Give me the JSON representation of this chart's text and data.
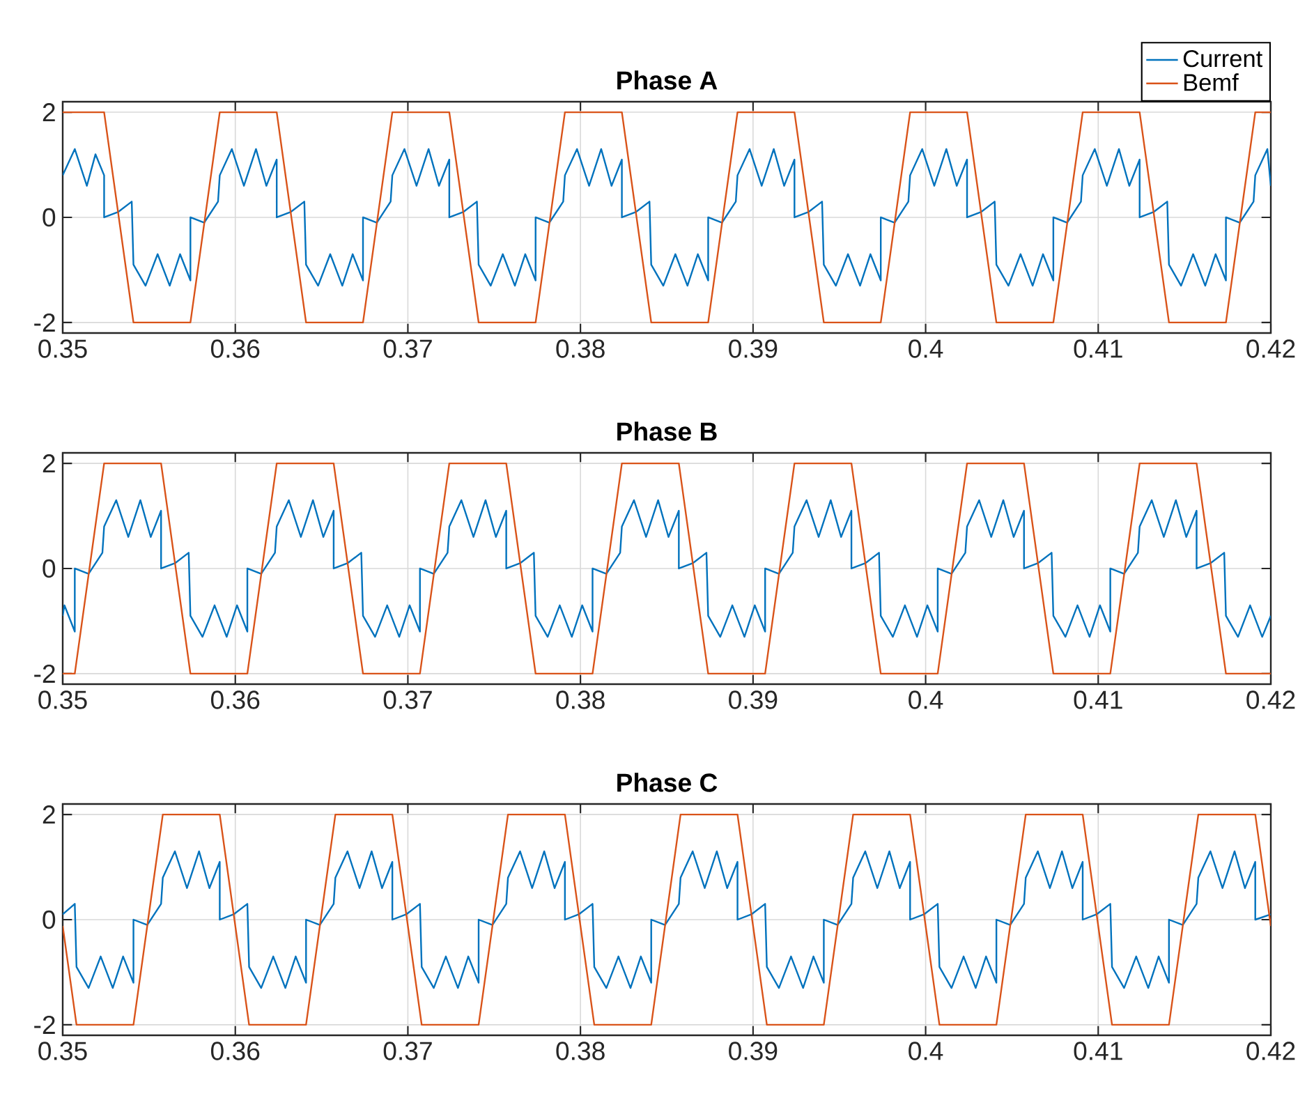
{
  "chart_data": [
    {
      "type": "line",
      "title": "Phase A",
      "xlim": [
        0.35,
        0.42
      ],
      "ylim": [
        -2.2,
        2.2
      ],
      "xticks": [
        0.35,
        0.36,
        0.37,
        0.38,
        0.39,
        0.4,
        0.41,
        0.42
      ],
      "yticks": [
        -2,
        0,
        2
      ],
      "grid": true,
      "legend": "top right",
      "series": [
        {
          "name": "Current",
          "color": "#0072bd",
          "x": [
            0.35,
            0.3507,
            0.3514,
            0.3519,
            0.3524,
            0.3524,
            0.3532,
            0.354,
            0.3541,
            0.3548,
            0.3555,
            0.3562,
            0.3568,
            0.3574,
            0.3574,
            0.3582,
            0.359,
            0.3591,
            0.3598,
            0.3605,
            0.3612,
            0.3618,
            0.3624,
            0.3624,
            0.3632,
            0.364,
            0.3641,
            0.3648,
            0.3655,
            0.3662,
            0.3668,
            0.3674,
            0.3674,
            0.3682,
            0.369,
            0.3691,
            0.3698,
            0.3705,
            0.3712,
            0.3718,
            0.3724,
            0.3724,
            0.3732,
            0.374,
            0.3741,
            0.3748,
            0.3755,
            0.3762,
            0.3768,
            0.3774,
            0.3774,
            0.3782,
            0.379,
            0.3791,
            0.3798,
            0.3805,
            0.3812,
            0.3818,
            0.3824,
            0.3824,
            0.3832,
            0.384,
            0.3841,
            0.3848,
            0.3855,
            0.3862,
            0.3868,
            0.3874,
            0.3874,
            0.3882,
            0.389,
            0.3891,
            0.3898,
            0.3905,
            0.3912,
            0.3918,
            0.3924,
            0.3924,
            0.3932,
            0.394,
            0.3941,
            0.3948,
            0.3955,
            0.3962,
            0.3968,
            0.3974,
            0.3974,
            0.3982,
            0.399,
            0.3991,
            0.3998,
            0.4005,
            0.4012,
            0.4018,
            0.4024,
            0.4024,
            0.4032,
            0.404,
            0.4041,
            0.4048,
            0.4055,
            0.4062,
            0.4068,
            0.4074,
            0.4074,
            0.4082,
            0.409,
            0.4091,
            0.4098,
            0.4105,
            0.4112,
            0.4118,
            0.4124,
            0.4124,
            0.4132,
            0.414,
            0.4141,
            0.4148,
            0.4155,
            0.4162,
            0.4168,
            0.4174,
            0.4174,
            0.4182,
            0.419,
            0.4191,
            0.4198,
            0.42
          ],
          "values": [
            0.8,
            1.3,
            0.6,
            1.2,
            0.8,
            0.0,
            0.1,
            0.3,
            -0.9,
            -1.3,
            -0.7,
            -1.3,
            -0.7,
            -1.2,
            0.0,
            -0.1,
            0.3,
            0.8,
            1.3,
            0.6,
            1.3,
            0.6,
            1.1,
            0.0,
            0.1,
            0.3,
            -0.9,
            -1.3,
            -0.7,
            -1.3,
            -0.7,
            -1.2,
            0.0,
            -0.1,
            0.3,
            0.8,
            1.3,
            0.6,
            1.3,
            0.6,
            1.1,
            0.0,
            0.1,
            0.3,
            -0.9,
            -1.3,
            -0.7,
            -1.3,
            -0.7,
            -1.2,
            0.0,
            -0.1,
            0.3,
            0.8,
            1.3,
            0.6,
            1.3,
            0.6,
            1.1,
            0.0,
            0.1,
            0.3,
            -0.9,
            -1.3,
            -0.7,
            -1.3,
            -0.7,
            -1.2,
            0.0,
            -0.1,
            0.3,
            0.8,
            1.3,
            0.6,
            1.3,
            0.6,
            1.1,
            0.0,
            0.1,
            0.3,
            -0.9,
            -1.3,
            -0.7,
            -1.3,
            -0.7,
            -1.2,
            0.0,
            -0.1,
            0.3,
            0.8,
            1.3,
            0.6,
            1.3,
            0.6,
            1.1,
            0.0,
            0.1,
            0.3,
            -0.9,
            -1.3,
            -0.7,
            -1.3,
            -0.7,
            -1.2,
            0.0,
            -0.1,
            0.3,
            0.8,
            1.3,
            0.6,
            1.3,
            0.6,
            1.1,
            0.0,
            0.1,
            0.3,
            -0.9,
            -1.3,
            -0.7,
            -1.3,
            -0.7,
            -1.2,
            0.0,
            -0.1,
            0.3,
            0.8,
            1.3,
            0.6
          ]
        },
        {
          "name": "Bemf",
          "color": "#d95319",
          "x": [
            0.35,
            0.3524,
            0.3541,
            0.3574,
            0.3591,
            0.3624,
            0.3641,
            0.3674,
            0.3691,
            0.3724,
            0.3741,
            0.3774,
            0.3791,
            0.3824,
            0.3841,
            0.3874,
            0.3891,
            0.3924,
            0.3941,
            0.3974,
            0.3991,
            0.4024,
            0.4041,
            0.4074,
            0.4091,
            0.4124,
            0.4141,
            0.4174,
            0.4191,
            0.42
          ],
          "values": [
            2,
            2,
            -2,
            -2,
            2,
            2,
            -2,
            -2,
            2,
            2,
            -2,
            -2,
            2,
            2,
            -2,
            -2,
            2,
            2,
            -2,
            -2,
            2,
            2,
            -2,
            -2,
            2,
            2,
            -2,
            -2,
            2,
            2
          ]
        }
      ]
    },
    {
      "type": "line",
      "title": "Phase B",
      "xlim": [
        0.35,
        0.42
      ],
      "ylim": [
        -2.2,
        2.2
      ],
      "xticks": [
        0.35,
        0.36,
        0.37,
        0.38,
        0.39,
        0.4,
        0.41,
        0.42
      ],
      "yticks": [
        -2,
        0,
        2
      ],
      "grid": true,
      "series": [
        {
          "color": "#0072bd",
          "x": [
            0.35,
            0.3501,
            0.3507,
            0.3507,
            0.3515,
            0.3523,
            0.3524,
            0.3531,
            0.3538,
            0.3545,
            0.3551,
            0.3557,
            0.3557,
            0.3565,
            0.3573,
            0.3574,
            0.3581,
            0.3588,
            0.3595,
            0.3601,
            0.3607,
            0.3607,
            0.3615,
            0.3623,
            0.3624,
            0.3631,
            0.3638,
            0.3645,
            0.3651,
            0.3657,
            0.3657,
            0.3665,
            0.3673,
            0.3674,
            0.3681,
            0.3688,
            0.3695,
            0.3701,
            0.3707,
            0.3707,
            0.3715,
            0.3723,
            0.3724,
            0.3731,
            0.3738,
            0.3745,
            0.3751,
            0.3757,
            0.3757,
            0.3765,
            0.3773,
            0.3774,
            0.3781,
            0.3788,
            0.3795,
            0.3801,
            0.3807,
            0.3807,
            0.3815,
            0.3823,
            0.3824,
            0.3831,
            0.3838,
            0.3845,
            0.3851,
            0.3857,
            0.3857,
            0.3865,
            0.3873,
            0.3874,
            0.3881,
            0.3888,
            0.3895,
            0.3901,
            0.3907,
            0.3907,
            0.3915,
            0.3923,
            0.3924,
            0.3931,
            0.3938,
            0.3945,
            0.3951,
            0.3957,
            0.3957,
            0.3965,
            0.3973,
            0.3974,
            0.3981,
            0.3988,
            0.3995,
            0.4001,
            0.4007,
            0.4007,
            0.4015,
            0.4023,
            0.4024,
            0.4031,
            0.4038,
            0.4045,
            0.4051,
            0.4057,
            0.4057,
            0.4065,
            0.4073,
            0.4074,
            0.4081,
            0.4088,
            0.4095,
            0.4101,
            0.4107,
            0.4107,
            0.4115,
            0.4123,
            0.4124,
            0.4131,
            0.4138,
            0.4145,
            0.4151,
            0.4157,
            0.4157,
            0.4165,
            0.4173,
            0.4174,
            0.4181,
            0.4188,
            0.4195,
            0.42
          ],
          "values": [
            -0.9,
            -0.7,
            -1.2,
            0.0,
            -0.1,
            0.3,
            0.8,
            1.3,
            0.6,
            1.3,
            0.6,
            1.1,
            0.0,
            0.1,
            0.3,
            -0.9,
            -1.3,
            -0.7,
            -1.3,
            -0.7,
            -1.2,
            0.0,
            -0.1,
            0.3,
            0.8,
            1.3,
            0.6,
            1.3,
            0.6,
            1.1,
            0.0,
            0.1,
            0.3,
            -0.9,
            -1.3,
            -0.7,
            -1.3,
            -0.7,
            -1.2,
            0.0,
            -0.1,
            0.3,
            0.8,
            1.3,
            0.6,
            1.3,
            0.6,
            1.1,
            0.0,
            0.1,
            0.3,
            -0.9,
            -1.3,
            -0.7,
            -1.3,
            -0.7,
            -1.2,
            0.0,
            -0.1,
            0.3,
            0.8,
            1.3,
            0.6,
            1.3,
            0.6,
            1.1,
            0.0,
            0.1,
            0.3,
            -0.9,
            -1.3,
            -0.7,
            -1.3,
            -0.7,
            -1.2,
            0.0,
            -0.1,
            0.3,
            0.8,
            1.3,
            0.6,
            1.3,
            0.6,
            1.1,
            0.0,
            0.1,
            0.3,
            -0.9,
            -1.3,
            -0.7,
            -1.3,
            -0.7,
            -1.2,
            0.0,
            -0.1,
            0.3,
            0.8,
            1.3,
            0.6,
            1.3,
            0.6,
            1.1,
            0.0,
            0.1,
            0.3,
            -0.9,
            -1.3,
            -0.7,
            -1.3,
            -0.7,
            -1.2,
            0.0,
            -0.1,
            0.3,
            0.8,
            1.3,
            0.6,
            1.3,
            0.6,
            1.1,
            0.0,
            0.1,
            0.3,
            -0.9,
            -1.3,
            -0.7,
            -1.3,
            -0.9
          ]
        },
        {
          "color": "#d95319",
          "x": [
            0.35,
            0.3507,
            0.3524,
            0.3557,
            0.3574,
            0.3607,
            0.3624,
            0.3657,
            0.3674,
            0.3707,
            0.3724,
            0.3757,
            0.3774,
            0.3807,
            0.3824,
            0.3857,
            0.3874,
            0.3907,
            0.3924,
            0.3957,
            0.3974,
            0.4007,
            0.4024,
            0.4057,
            0.4074,
            0.4107,
            0.4124,
            0.4157,
            0.4174,
            0.42
          ],
          "values": [
            -2,
            -2,
            2,
            2,
            -2,
            -2,
            2,
            2,
            -2,
            -2,
            2,
            2,
            -2,
            -2,
            2,
            2,
            -2,
            -2,
            2,
            2,
            -2,
            -2,
            2,
            2,
            -2,
            -2,
            2,
            2,
            -2,
            -2
          ]
        }
      ]
    },
    {
      "type": "line",
      "title": "Phase C",
      "xlim": [
        0.35,
        0.42
      ],
      "ylim": [
        -2.2,
        2.2
      ],
      "xticks": [
        0.35,
        0.36,
        0.37,
        0.38,
        0.39,
        0.4,
        0.41,
        0.42
      ],
      "yticks": [
        -2,
        0,
        2
      ],
      "grid": true,
      "series": [
        {
          "color": "#0072bd",
          "x": [
            0.35,
            0.3507,
            0.3508,
            0.3515,
            0.3522,
            0.3529,
            0.3535,
            0.3541,
            0.3541,
            0.3549,
            0.3557,
            0.3558,
            0.3565,
            0.3572,
            0.3579,
            0.3585,
            0.3591,
            0.3591,
            0.3599,
            0.3607,
            0.3608,
            0.3615,
            0.3622,
            0.3629,
            0.3635,
            0.3641,
            0.3641,
            0.3649,
            0.3657,
            0.3658,
            0.3665,
            0.3672,
            0.3679,
            0.3685,
            0.3691,
            0.3691,
            0.3699,
            0.3707,
            0.3708,
            0.3715,
            0.3722,
            0.3729,
            0.3735,
            0.3741,
            0.3741,
            0.3749,
            0.3757,
            0.3758,
            0.3765,
            0.3772,
            0.3779,
            0.3785,
            0.3791,
            0.3791,
            0.3799,
            0.3807,
            0.3808,
            0.3815,
            0.3822,
            0.3829,
            0.3835,
            0.3841,
            0.3841,
            0.3849,
            0.3857,
            0.3858,
            0.3865,
            0.3872,
            0.3879,
            0.3885,
            0.3891,
            0.3891,
            0.3899,
            0.3907,
            0.3908,
            0.3915,
            0.3922,
            0.3929,
            0.3935,
            0.3941,
            0.3941,
            0.3949,
            0.3957,
            0.3958,
            0.3965,
            0.3972,
            0.3979,
            0.3985,
            0.3991,
            0.3991,
            0.3999,
            0.4007,
            0.4008,
            0.4015,
            0.4022,
            0.4029,
            0.4035,
            0.4041,
            0.4041,
            0.4049,
            0.4057,
            0.4058,
            0.4065,
            0.4072,
            0.4079,
            0.4085,
            0.4091,
            0.4091,
            0.4099,
            0.4107,
            0.4108,
            0.4115,
            0.4122,
            0.4129,
            0.4135,
            0.4141,
            0.4141,
            0.4149,
            0.4157,
            0.4158,
            0.4165,
            0.4172,
            0.4179,
            0.4185,
            0.4191,
            0.4191,
            0.42
          ],
          "values": [
            0.1,
            0.3,
            -0.9,
            -1.3,
            -0.7,
            -1.3,
            -0.7,
            -1.2,
            0.0,
            -0.1,
            0.3,
            0.8,
            1.3,
            0.6,
            1.3,
            0.6,
            1.1,
            0.0,
            0.1,
            0.3,
            -0.9,
            -1.3,
            -0.7,
            -1.3,
            -0.7,
            -1.2,
            0.0,
            -0.1,
            0.3,
            0.8,
            1.3,
            0.6,
            1.3,
            0.6,
            1.1,
            0.0,
            0.1,
            0.3,
            -0.9,
            -1.3,
            -0.7,
            -1.3,
            -0.7,
            -1.2,
            0.0,
            -0.1,
            0.3,
            0.8,
            1.3,
            0.6,
            1.3,
            0.6,
            1.1,
            0.0,
            0.1,
            0.3,
            -0.9,
            -1.3,
            -0.7,
            -1.3,
            -0.7,
            -1.2,
            0.0,
            -0.1,
            0.3,
            0.8,
            1.3,
            0.6,
            1.3,
            0.6,
            1.1,
            0.0,
            0.1,
            0.3,
            -0.9,
            -1.3,
            -0.7,
            -1.3,
            -0.7,
            -1.2,
            0.0,
            -0.1,
            0.3,
            0.8,
            1.3,
            0.6,
            1.3,
            0.6,
            1.1,
            0.0,
            0.1,
            0.3,
            -0.9,
            -1.3,
            -0.7,
            -1.3,
            -0.7,
            -1.2,
            0.0,
            -0.1,
            0.3,
            0.8,
            1.3,
            0.6,
            1.3,
            0.6,
            1.1,
            0.0,
            0.1,
            0.3,
            -0.9,
            -1.3,
            -0.7,
            -1.3,
            -0.7,
            -1.2,
            0.0,
            -0.1,
            0.3,
            0.8,
            1.3,
            0.6,
            1.3,
            0.6,
            1.1,
            0.0,
            0.1
          ]
        },
        {
          "color": "#d95319",
          "x": [
            0.35,
            0.3508,
            0.3541,
            0.3558,
            0.3591,
            0.3608,
            0.3641,
            0.3658,
            0.3691,
            0.3708,
            0.3741,
            0.3758,
            0.3791,
            0.3808,
            0.3841,
            0.3858,
            0.3891,
            0.3908,
            0.3941,
            0.3958,
            0.3991,
            0.4008,
            0.4041,
            0.4058,
            0.4091,
            0.4108,
            0.4141,
            0.4158,
            0.4191,
            0.42
          ],
          "values": [
            -0.12,
            -2,
            -2,
            2,
            2,
            -2,
            -2,
            2,
            2,
            -2,
            -2,
            2,
            2,
            -2,
            -2,
            2,
            2,
            -2,
            -2,
            2,
            2,
            -2,
            -2,
            2,
            2,
            -2,
            -2,
            2,
            2,
            -0.12
          ]
        }
      ]
    }
  ]
}
